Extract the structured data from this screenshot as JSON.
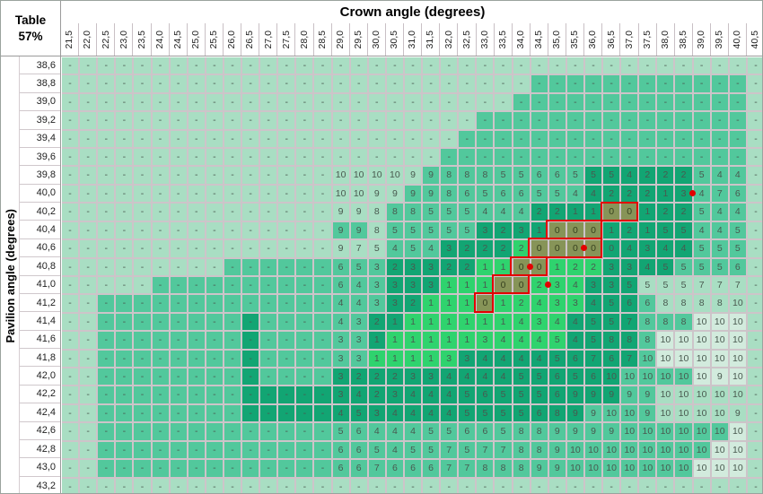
{
  "corner": {
    "title": "Table",
    "value": "57%"
  },
  "x_axis_title": "Crown angle (degrees)",
  "y_axis_title": "Pavilion angle (degrees)",
  "chart_data": {
    "type": "heatmap",
    "title": "Diamond cut score by crown angle and pavilion angle, table 57%",
    "xlabel": "Crown angle (degrees)",
    "ylabel": "Pavilion angle (degrees)",
    "value_range": [
      0,
      10
    ],
    "no_data_symbol": "-",
    "color_classes": {
      "p": "#a9dec3",
      "m": "#52c89c",
      "d": "#12a573",
      "b": "#2fd36e",
      "o": "#879458",
      "g": "#d2ebdd"
    },
    "token_format": "count*valueColor, '!' = red-boxed cell, '.' = red dot marker at cell top-left",
    "x_ticks": [
      "21,5",
      "22,0",
      "22,5",
      "23,0",
      "23,5",
      "24,0",
      "24,5",
      "25,0",
      "25,5",
      "26,0",
      "26,5",
      "27,0",
      "27,5",
      "28,0",
      "28,5",
      "29,0",
      "29,5",
      "30,0",
      "30,5",
      "31,0",
      "31,5",
      "32,0",
      "32,5",
      "33,0",
      "33,5",
      "34,0",
      "34,5",
      "35,0",
      "35,5",
      "36,0",
      "36,5",
      "37,0",
      "37,5",
      "38,0",
      "38,5",
      "39,0",
      "39,5",
      "40,0",
      "40,5"
    ],
    "rows": [
      {
        "label": "38,6",
        "cells": "39*-p"
      },
      {
        "label": "38,8",
        "cells": "26*-p,12*-m,-p"
      },
      {
        "label": "39,0",
        "cells": "25*-p,13*-m,-p"
      },
      {
        "label": "39,2",
        "cells": "23*-p,15*-m,-p"
      },
      {
        "label": "39,4",
        "cells": "22*-p,16*-m,-p"
      },
      {
        "label": "39,6",
        "cells": "21*-p,17*-m,-p"
      },
      {
        "label": "39,8",
        "cells": "15*-p,4*10p,9p,9m,3*8m,2*5m,2*6m,5m,2*5d,4d,3*2d,5m,2*4m,-p"
      },
      {
        "label": "40,0",
        "cells": "15*-p,2*10p,2*9p,2*9m,8m,6m,5m,2*6m,2*5m,4m,4d,3*2d,1d,3d,4m.,7m,6m,-p"
      },
      {
        "label": "40,2",
        "cells": "15*-p,2*9p,8p,2*8m,3*5m,3*4m,2*2d,2*1d,2*0o!,1d,2*2d,5m,2*4m,-p"
      },
      {
        "label": "40,4",
        "cells": "15*-p,2*9m,8p,5*5m,3d,2d,3d,1d,3*0o!,1d,2d,1d,2*5d,2*4m,5m,-p"
      },
      {
        "label": "40,6",
        "cells": "15*-p,9p,7p,5p,4m,5m,4m,3d,3*2d,2b,3*0o!,0o!.,0d,4d,3d,2*4d,3*5m,-p"
      },
      {
        "label": "40,8",
        "cells": "9*-p,6*-m,6m,5m,3m,2d,2*3d,2*2d,2*1b,0o!,0o!.,1b,2*2b,2*3d,4d,5d,3*5m,6m,-p"
      },
      {
        "label": "41,0",
        "cells": "5*-p,10*-m,6m,4m,3m,3*3d,3*1b,2*0o!,2b,3b.,4b,2*3d,5d,3*5p,3*7p,-p"
      },
      {
        "label": "41,2",
        "cells": "2*-p,13*-m,2*4m,3m,3d,2d,3*1b,0o!,1b,2b,4b,2*3b,4d,5d,6d,6m,4*8p,10p,-p"
      },
      {
        "label": "41,4",
        "cells": "2*-p,8*-m,-d,4*-m,4m,3m,2d,1d,6*1b,4b,3b,4b,4d,2*5d,7d,3*8m,3*10g,-p"
      },
      {
        "label": "41,6",
        "cells": "2*-p,8*-m,-d,4*-m,2*3m,1d,5*1b,3b,3*4b,5b,4d,5d,2*8d,8m,5*10g,-p"
      },
      {
        "label": "41,8",
        "cells": "2*-p,8*-m,-d,4*-m,2*3m,4*1b,3b,3d,4*4d,5d,6d,7d,6d,7d,10m,5*10g,-p"
      },
      {
        "label": "42,0",
        "cells": "2*-p,8*-m,-d,4*-m,3d,3*2d,2*3d,4*4d,2*5d,6d,5d,6d,10d,4*10m,10g,9g,10g,-p"
      },
      {
        "label": "42,2",
        "cells": "2*-p,8*-m,5*-d,3d,4d,2d,3d,3*4d,5d,6d,3*5d,6d,3*9d,2*9m,5*10p,-p"
      },
      {
        "label": "42,4",
        "cells": "2*-p,8*-m,5*-d,4d,5d,3d,4*4d,4*5d,6d,8d,9d,9m,2*10m,9m,4*10p,9p,-p"
      },
      {
        "label": "42,6",
        "cells": "2*-p,13*-m,5m,6m,3*4m,2*5m,2*6m,5m,2*8m,4*9m,6*10m,10g,-p"
      },
      {
        "label": "42,8",
        "cells": "2*-p,13*-m,2*6m,5m,4m,2*5m,7m,5m,2*7m,2*8m,9m,8*10m,2*10g,-p"
      },
      {
        "label": "43,0",
        "cells": "2*-p,13*-m,2*6m,7m,3*6m,2*7m,3*8m,2*9m,7*10m,3*10g,-p"
      },
      {
        "label": "43,2",
        "cells": "39*-p"
      }
    ],
    "red_boxed_groups": [
      {
        "row": "40,2",
        "from": "36,5",
        "to": "37,0"
      },
      {
        "row": "40,4",
        "from": "35,0",
        "to": "36,0"
      },
      {
        "row": "40,6",
        "from": "34,5",
        "to": "36,0"
      },
      {
        "row": "40,8",
        "from": "34,0",
        "to": "34,5"
      },
      {
        "row": "41,0",
        "from": "33,5",
        "to": "34,0"
      },
      {
        "row": "41,2",
        "from": "33,0",
        "to": "33,0"
      }
    ],
    "red_dots": [
      {
        "row": "40,0",
        "col": "39,0"
      },
      {
        "row": "40,6",
        "col": "36,0"
      },
      {
        "row": "40,8",
        "col": "34,5"
      },
      {
        "row": "41,0",
        "col": "35,0"
      }
    ],
    "accent_red": "#e30000"
  }
}
